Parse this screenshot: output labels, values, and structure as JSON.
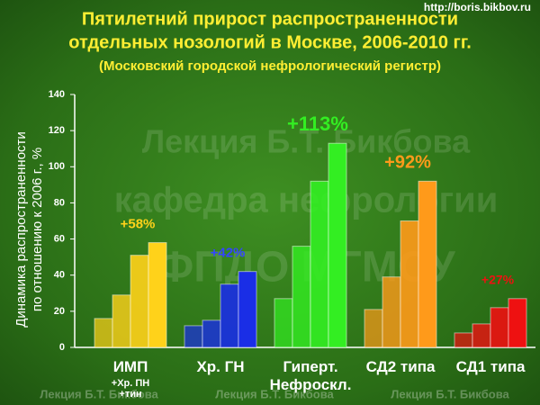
{
  "chart_data": {
    "type": "bar",
    "title": [
      "Пятилетний прирост распространенности",
      "отдельных нозологий в Москве, 2006-2010 гг."
    ],
    "subtitle": "(Московский городской нефрологический регистр)",
    "source_url": "http://boris.bikbov.ru",
    "y_label": [
      "Динамика распространенности",
      "по отношению к 2006 г., %"
    ],
    "ylim": [
      0,
      140
    ],
    "yticks": [
      0,
      20,
      40,
      60,
      80,
      100,
      120,
      140
    ],
    "series": [
      {
        "name": "ИМП",
        "note": "+Хр. ПН +тин",
        "color": "#ffd21a",
        "values": [
          16,
          29,
          51,
          58
        ],
        "value_label": "+58%"
      },
      {
        "name": "Хр. ГН",
        "color": "#1a2ee6",
        "values": [
          12,
          15,
          35,
          42
        ],
        "value_label": "+42%"
      },
      {
        "name": "Гиперт. Нефроскл.",
        "color": "#33ee22",
        "values": [
          27,
          56,
          92,
          113
        ],
        "value_label": "+113%"
      },
      {
        "name": "СД2 типа",
        "color": "#ff9a1a",
        "values": [
          21,
          39,
          70,
          92
        ],
        "value_label": "+92%"
      },
      {
        "name": "СД1 типа",
        "color": "#ee1111",
        "values": [
          8,
          13,
          22,
          27
        ],
        "value_label": "+27%"
      }
    ],
    "watermarks": [
      "Лекция Б.Т. Бикбова",
      "кафедра нефрологии",
      "ФПДО МГМСУ"
    ],
    "footer_watermark": "Лекция Б.Т. Бикбова"
  }
}
